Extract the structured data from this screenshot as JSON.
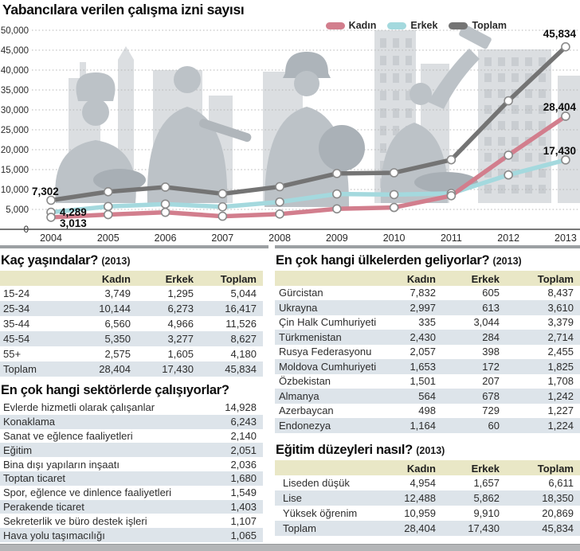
{
  "title": "Yabancılara verilen çalışma izni sayısı",
  "chart_data": {
    "type": "line",
    "title": "Yabancılara verilen çalışma izni sayısı",
    "x": [
      2004,
      2005,
      2006,
      2007,
      2008,
      2009,
      2010,
      2011,
      2012,
      2013
    ],
    "series": [
      {
        "name": "Kadın",
        "color": "#d27e8d",
        "values": [
          3013,
          3697,
          4268,
          3278,
          3837,
          5142,
          5482,
          8440,
          18622,
          28404
        ]
      },
      {
        "name": "Erkek",
        "color": "#a4d9de",
        "values": [
          4289,
          5741,
          6335,
          5652,
          6868,
          8881,
          8719,
          9026,
          13657,
          17430
        ]
      },
      {
        "name": "Toplam",
        "color": "#747474",
        "values": [
          7302,
          9438,
          10603,
          8930,
          10705,
          14023,
          14201,
          17466,
          32279,
          45834
        ]
      }
    ],
    "ylim": [
      0,
      50000
    ],
    "ytick_step": 5000,
    "grid": "dotted-horizontal",
    "legend_position": "top-right",
    "marker": "open-circle",
    "annotations": [
      {
        "series": "Toplam",
        "point": "first",
        "label": "7,302"
      },
      {
        "series": "Erkek",
        "point": "first",
        "label": "4,289"
      },
      {
        "series": "Kadın",
        "point": "first",
        "label": "3,013"
      },
      {
        "series": "Toplam",
        "point": "last",
        "label": "45,834"
      },
      {
        "series": "Kadın",
        "point": "last",
        "label": "28,404"
      },
      {
        "series": "Erkek",
        "point": "last",
        "label": "17,430"
      }
    ]
  },
  "sections": {
    "age": {
      "heading": "Kaç yaşındalar?",
      "year_note": "(2013)",
      "columns": [
        "Kadın",
        "Erkek",
        "Toplam"
      ],
      "rows": [
        [
          "15-24",
          "3,749",
          "1,295",
          "5,044"
        ],
        [
          "25-34",
          "10,144",
          "6,273",
          "16,417"
        ],
        [
          "35-44",
          "6,560",
          "4,966",
          "11,526"
        ],
        [
          "45-54",
          "5,350",
          "3,277",
          "8,627"
        ],
        [
          "55+",
          "2,575",
          "1,605",
          "4,180"
        ],
        [
          "Toplam",
          "28,404",
          "17,430",
          "45,834"
        ]
      ]
    },
    "countries": {
      "heading": "En çok hangi ülkelerden geliyorlar?",
      "year_note": "(2013)",
      "columns": [
        "Kadın",
        "Erkek",
        "Toplam"
      ],
      "rows": [
        [
          "Gürcistan",
          "7,832",
          "605",
          "8,437"
        ],
        [
          "Ukrayna",
          "2,997",
          "613",
          "3,610"
        ],
        [
          "Çin Halk Cumhuriyeti",
          "335",
          "3,044",
          "3,379"
        ],
        [
          "Türkmenistan",
          "2,430",
          "284",
          "2,714"
        ],
        [
          "Rusya Federasyonu",
          "2,057",
          "398",
          "2,455"
        ],
        [
          "Moldova Cumhuriyeti",
          "1,653",
          "172",
          "1,825"
        ],
        [
          "Özbekistan",
          "1,501",
          "207",
          "1,708"
        ],
        [
          "Almanya",
          "564",
          "678",
          "1,242"
        ],
        [
          "Azerbaycan",
          "498",
          "729",
          "1,227"
        ],
        [
          "Endonezya",
          "1,164",
          "60",
          "1,224"
        ]
      ]
    },
    "sectors": {
      "heading": "En çok hangi sektörlerde çalışıyorlar?",
      "rows": [
        [
          "Evlerde hizmetli olarak çalışanlar",
          "14,928"
        ],
        [
          "Konaklama",
          "6,243"
        ],
        [
          "Sanat ve eğlence faaliyetleri",
          "2,140"
        ],
        [
          "Eğitim",
          "2,051"
        ],
        [
          "Bina dışı yapıların inşaatı",
          "2,036"
        ],
        [
          "Toptan ticaret",
          "1,680"
        ],
        [
          "Spor, eğlence ve dinlence faaliyetleri",
          "1,549"
        ],
        [
          "Perakende ticaret",
          "1,403"
        ],
        [
          "Sekreterlik ve büro destek işleri",
          "1,107"
        ],
        [
          "Hava yolu taşımacılığı",
          "1,065"
        ]
      ]
    },
    "education": {
      "heading": "Eğitim düzeyleri nasıl?",
      "year_note": "(2013)",
      "columns": [
        "Kadın",
        "Erkek",
        "Toplam"
      ],
      "rows": [
        [
          "Liseden düşük",
          "4,954",
          "1,657",
          "6,611"
        ],
        [
          "Lise",
          "12,488",
          "5,862",
          "18,350"
        ],
        [
          "Yüksek öğrenim",
          "10,959",
          "9,910",
          "20,869"
        ],
        [
          "Toplam",
          "28,404",
          "17,430",
          "45,834"
        ]
      ]
    }
  },
  "colors": {
    "kadin": "#d27e8d",
    "erkek": "#a4d9de",
    "toplam": "#747474",
    "table_header_bg": "#e9e7c6",
    "row_shaded_bg": "#dde4ea",
    "divider": "#9ca0a3",
    "footer_bar": "#b4b6b8",
    "grid_dotted": "#b5b5b5",
    "skyline": "#dbdee1",
    "figures": "#bcc2c7"
  }
}
